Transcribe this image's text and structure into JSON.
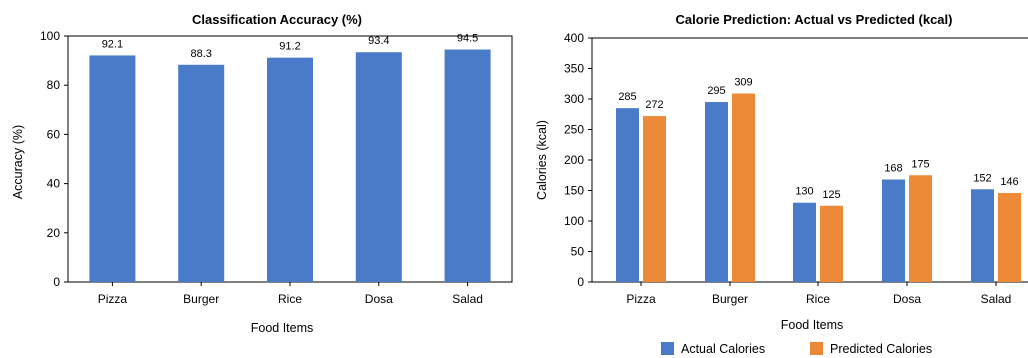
{
  "chart_data": [
    {
      "type": "bar",
      "title": "Classification Accuracy (%)",
      "xlabel": "Food Items",
      "ylabel": "Accuracy (%)",
      "categories": [
        "Pizza",
        "Burger",
        "Rice",
        "Dosa",
        "Salad"
      ],
      "values": [
        92.1,
        88.3,
        91.2,
        93.4,
        94.5
      ],
      "data_labels": [
        "92.1",
        "88.3",
        "91.2",
        "93.4",
        "94.5"
      ],
      "ylim": [
        0,
        100
      ],
      "yticks": [
        "0",
        "20",
        "40",
        "60",
        "80",
        "100"
      ],
      "color": "#4a7bc8",
      "grid": false,
      "legend": "none"
    },
    {
      "type": "bar",
      "title": "Calorie Prediction: Actual vs Predicted (kcal)",
      "xlabel": "Food Items",
      "ylabel": "Calories (kcal)",
      "categories": [
        "Pizza",
        "Burger",
        "Rice",
        "Dosa",
        "Salad"
      ],
      "series": [
        {
          "name": "Actual Calories",
          "values": [
            285,
            295,
            130,
            168,
            152
          ],
          "data_labels": [
            "285",
            "295",
            "130",
            "168",
            "152"
          ],
          "color": "#4a7bc8"
        },
        {
          "name": "Predicted Calories",
          "values": [
            272,
            309,
            125,
            175,
            146
          ],
          "data_labels": [
            "272",
            "309",
            "125",
            "175",
            "146"
          ],
          "color": "#ed8a37"
        }
      ],
      "ylim": [
        0,
        400
      ],
      "yticks": [
        "0",
        "50",
        "100",
        "150",
        "200",
        "250",
        "300",
        "350",
        "400"
      ],
      "grid": false,
      "legend": "bottom"
    }
  ]
}
